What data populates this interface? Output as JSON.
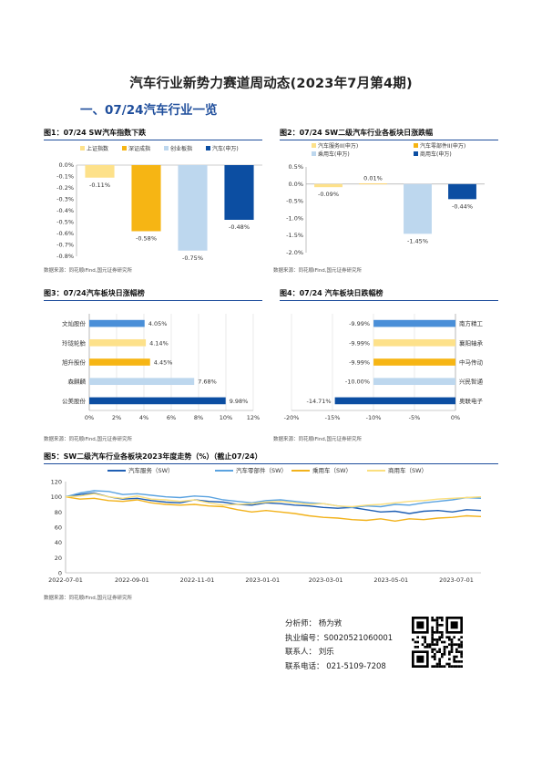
{
  "header": {
    "title": "汽车行业新势力赛道周动态(2023年7月第4期)",
    "section": "一、07/24汽车行业一览"
  },
  "figures": [
    {
      "caption": "图1：07/24 SW汽车指数下跌",
      "source": "数据来源：同花顺iFind,国元证券研究所"
    },
    {
      "caption": "图2：07/24 SW二级汽车行业各板块日涨跌幅",
      "source": "数据来源：同花顺iFind,国元证券研究所"
    },
    {
      "caption": "图3：07/24汽车板块日涨幅榜",
      "source": "数据来源：同花顺iFind,国元证券研究所"
    },
    {
      "caption": "图4：07/24 汽车板块日跌幅榜",
      "source": "数据来源：同花顺iFind,国元证券研究所"
    },
    {
      "caption": "图5：SW二级汽车行业各板块2023年度走势（%）（截止07/24）",
      "source": "数据来源：同花顺iFind,国元证券研究所"
    }
  ],
  "chart_data": [
    {
      "type": "bar",
      "categories": [
        "上证指数",
        "深证成指",
        "创业板指",
        "汽车(申万)"
      ],
      "values": [
        -0.11,
        -0.58,
        -0.75,
        -0.48
      ],
      "data_labels": [
        "-0.11%",
        "-0.58%",
        "-0.75%",
        "-0.48%"
      ],
      "colors": [
        "#fde18a",
        "#f6b514",
        "#bdd7ee",
        "#0c4ea2"
      ],
      "ylim": [
        -0.8,
        0.0
      ],
      "yticks": [
        "0.0%",
        "-0.1%",
        "-0.2%",
        "-0.3%",
        "-0.4%",
        "-0.5%",
        "-0.6%",
        "-0.7%",
        "-0.8%"
      ],
      "ytick_values": [
        0,
        -0.1,
        -0.2,
        -0.3,
        -0.4,
        -0.5,
        -0.6,
        -0.7,
        -0.8
      ],
      "legend": "top"
    },
    {
      "type": "bar",
      "categories": [
        "汽车服务II(申万)",
        "汽车零部件II(申万)",
        "乘用车(申万)",
        "商用车(申万)"
      ],
      "values": [
        -0.09,
        0.01,
        -1.45,
        -0.44
      ],
      "data_labels": [
        "-0.09%",
        "0.01%",
        "-1.45%",
        "-0.44%"
      ],
      "colors": [
        "#fde18a",
        "#f6b514",
        "#bdd7ee",
        "#0c4ea2"
      ],
      "ylim": [
        -2.0,
        0.5
      ],
      "yticks": [
        "0.5%",
        "0.0%",
        "-0.5%",
        "-1.0%",
        "-1.5%",
        "-2.0%"
      ],
      "ytick_values": [
        0.5,
        0,
        -0.5,
        -1.0,
        -1.5,
        -2.0
      ],
      "legend": "top"
    },
    {
      "type": "bar",
      "orientation": "horizontal",
      "categories": [
        "文灿股份",
        "玲珑轮胎",
        "旭升股份",
        "森麒麟",
        "公美股份"
      ],
      "values": [
        4.05,
        4.14,
        4.45,
        7.68,
        9.98
      ],
      "data_labels": [
        "4.05%",
        "4.14%",
        "4.45%",
        "7.68%",
        "9.98%"
      ],
      "colors": [
        "#4a8fd8",
        "#fde18a",
        "#f6b514",
        "#bdd7ee",
        "#0c4ea2"
      ],
      "xlim": [
        0,
        12
      ],
      "xticks": [
        "0%",
        "2%",
        "4%",
        "6%",
        "8%",
        "10%",
        "12%"
      ],
      "xtick_values": [
        0,
        2,
        4,
        6,
        8,
        10,
        12
      ]
    },
    {
      "type": "bar",
      "orientation": "horizontal",
      "categories": [
        "南方精工",
        "襄阳轴承",
        "中马传动",
        "兴民智通",
        "奥联电子"
      ],
      "values": [
        -9.99,
        -9.99,
        -9.99,
        -10.0,
        -14.71
      ],
      "data_labels": [
        "-9.99%",
        "-9.99%",
        "-9.99%",
        "-10.00%",
        "-14.71%"
      ],
      "colors": [
        "#4a8fd8",
        "#fde18a",
        "#f6b514",
        "#bdd7ee",
        "#0c4ea2"
      ],
      "xlim": [
        -20,
        0
      ],
      "xticks": [
        "-20%",
        "-15%",
        "-10%",
        "-5%",
        "0%"
      ],
      "xtick_values": [
        -20,
        -15,
        -10,
        -5,
        0
      ]
    },
    {
      "type": "line",
      "x_range": [
        "2022-07-01",
        "2023-07-24"
      ],
      "xticks": [
        "2022-07-01",
        "2022-09-01",
        "2022-11-01",
        "2023-01-01",
        "2023-03-01",
        "2023-05-01",
        "2023-07-01"
      ],
      "ylim": [
        0,
        120
      ],
      "yticks": [
        "0",
        "20",
        "40",
        "60",
        "80",
        "100",
        "120"
      ],
      "ytick_values": [
        0,
        20,
        40,
        60,
        80,
        100,
        120
      ],
      "legend": "top",
      "series": [
        {
          "name": "汽车服务（SW）",
          "color": "#1f5fb4",
          "values": [
            100,
            103,
            105,
            100,
            97,
            98,
            95,
            93,
            92,
            96,
            94,
            93,
            90,
            89,
            92,
            91,
            89,
            88,
            86,
            85,
            86,
            83,
            80,
            81,
            78,
            81,
            82,
            80,
            83,
            82
          ]
        },
        {
          "name": "汽车零部件（SW）",
          "color": "#5ba3e0",
          "values": [
            100,
            105,
            108,
            107,
            103,
            104,
            102,
            100,
            99,
            101,
            100,
            96,
            94,
            92,
            95,
            96,
            94,
            92,
            91,
            88,
            86,
            88,
            87,
            90,
            89,
            92,
            94,
            96,
            99,
            98
          ]
        },
        {
          "name": "乘用车（SW）",
          "color": "#f2b21b",
          "values": [
            100,
            97,
            98,
            95,
            94,
            96,
            92,
            90,
            89,
            90,
            88,
            87,
            83,
            80,
            82,
            80,
            78,
            75,
            73,
            72,
            70,
            69,
            71,
            68,
            71,
            70,
            72,
            73,
            75,
            74
          ]
        },
        {
          "name": "商用车（SW）",
          "color": "#fbdf7e",
          "values": [
            100,
            101,
            104,
            100,
            98,
            101,
            97,
            96,
            94,
            96,
            92,
            89,
            90,
            91,
            93,
            94,
            92,
            90,
            91,
            88,
            87,
            89,
            90,
            92,
            94,
            95,
            97,
            98,
            99,
            100
          ]
        }
      ]
    }
  ],
  "contact": {
    "analyst": "分析师： 杨为敩",
    "license": "执业编号：S0020521060001",
    "liaison": "联系人： 刘乐",
    "phone": "联系电话： 021-5109-7208"
  }
}
